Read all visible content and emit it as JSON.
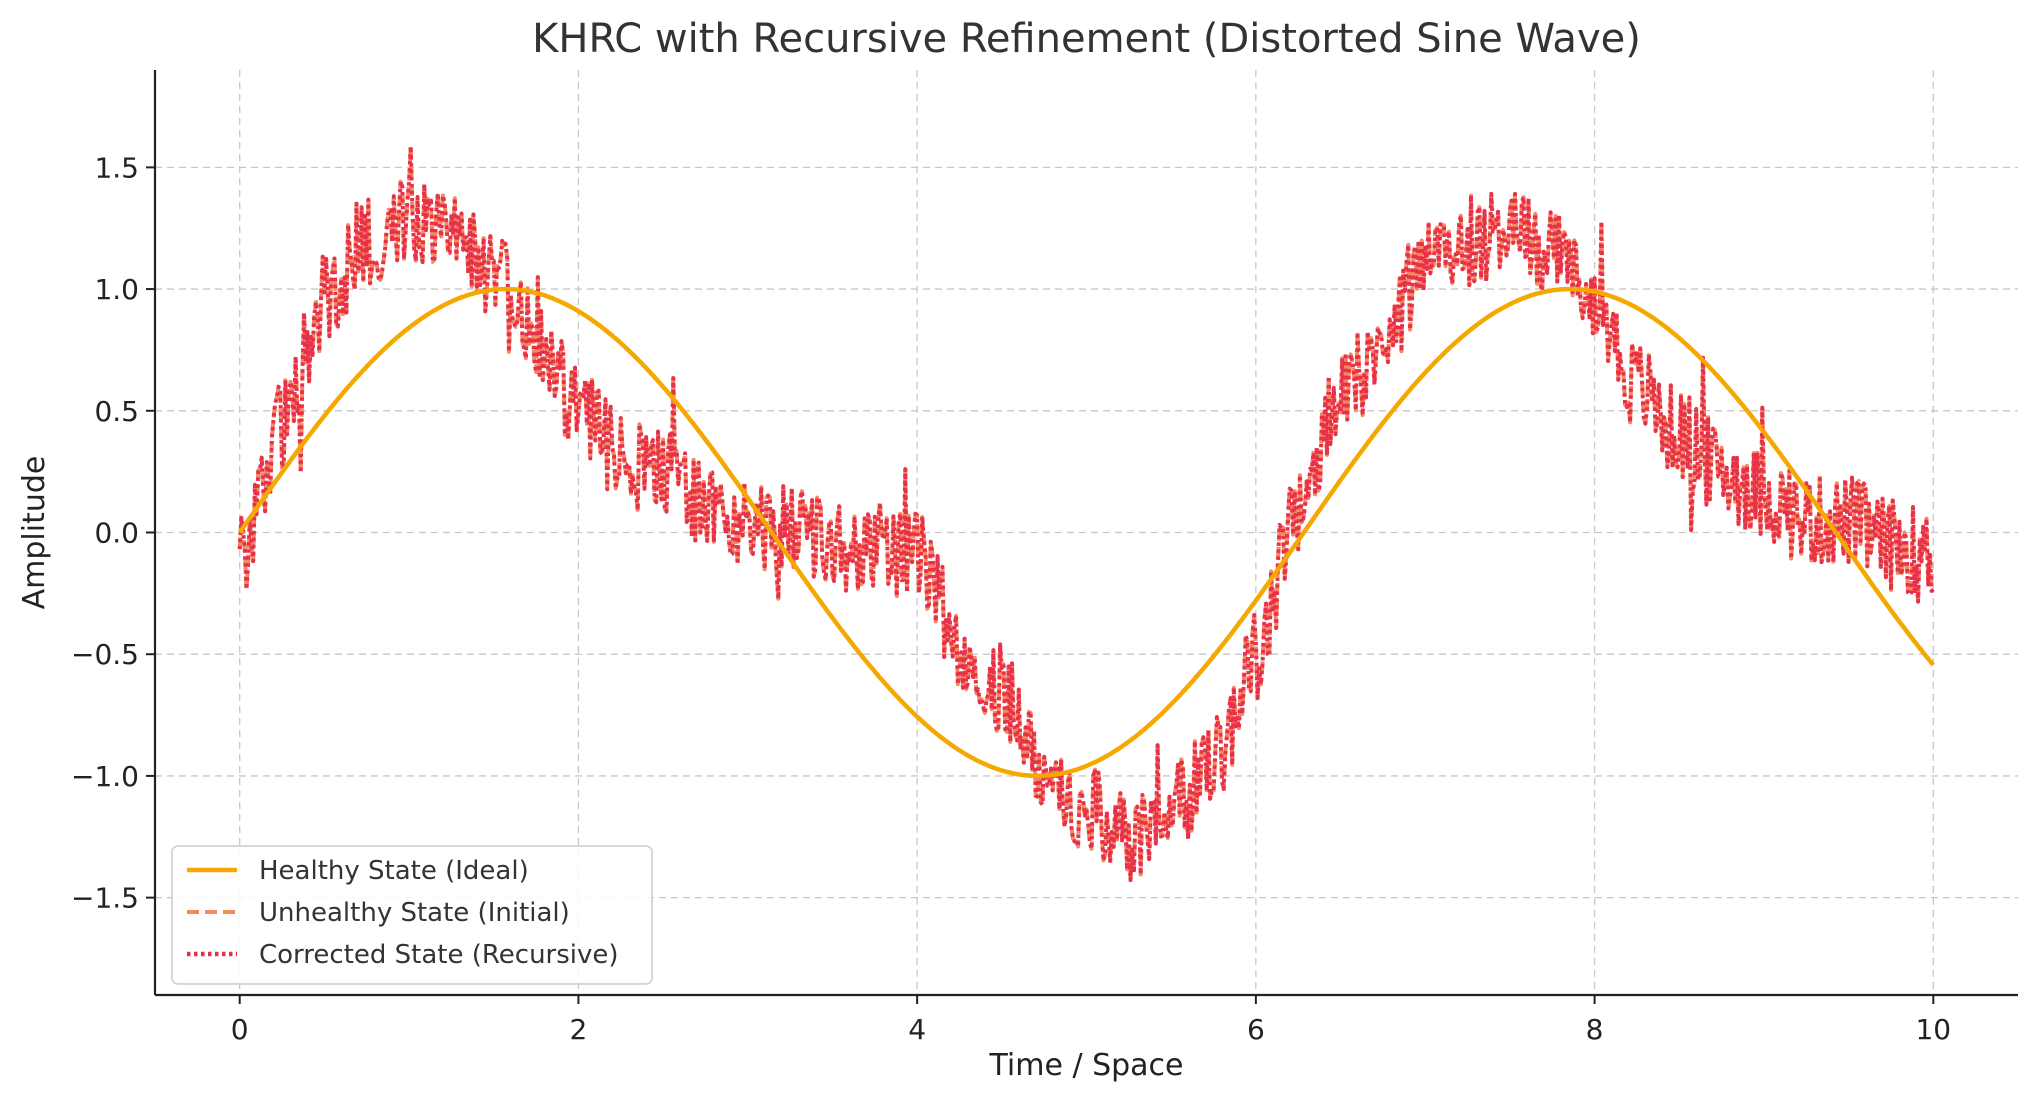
{
  "chart_data": {
    "type": "line",
    "title": "KHRC with Recursive Refinement (Distorted Sine Wave)",
    "xlabel": "Time / Space",
    "ylabel": "Amplitude",
    "xlim": [
      -0.5,
      10.5
    ],
    "ylim": [
      -1.9,
      1.9
    ],
    "xticks": [
      0,
      2,
      4,
      6,
      8,
      10
    ],
    "xtick_labels": [
      "0",
      "2",
      "4",
      "6",
      "8",
      "10"
    ],
    "yticks": [
      -1.5,
      -1.0,
      -0.5,
      0.0,
      0.5,
      1.0,
      1.5
    ],
    "ytick_labels": [
      "−1.5",
      "−1.0",
      "−0.5",
      "0.0",
      "0.5",
      "1.0",
      "1.5"
    ],
    "grid": true,
    "legend_position": "lower-left",
    "series": [
      {
        "name": "Healthy State (Ideal)",
        "style": "solid",
        "color": "#F5A800",
        "formula": "sin(x)",
        "x": [
          0,
          0.5,
          1,
          1.5,
          2,
          2.5,
          3,
          3.5,
          4,
          4.5,
          5,
          5.5,
          6,
          6.5,
          7,
          7.5,
          8,
          8.5,
          9,
          9.5,
          10
        ],
        "values": [
          0.0,
          0.48,
          0.84,
          1.0,
          0.91,
          0.6,
          0.14,
          -0.35,
          -0.76,
          -0.98,
          -0.96,
          -0.71,
          -0.28,
          0.22,
          0.66,
          0.94,
          0.99,
          0.8,
          0.41,
          -0.08,
          -0.54
        ]
      },
      {
        "name": "Unhealthy State (Initial)",
        "style": "dashed",
        "color": "#F4895F",
        "x": [
          0,
          0.25,
          0.5,
          0.75,
          1,
          1.25,
          1.5,
          1.75,
          2,
          2.25,
          2.5,
          2.75,
          3,
          3.25,
          3.5,
          3.75,
          4,
          4.25,
          4.5,
          4.75,
          5,
          5.25,
          5.5,
          5.75,
          6,
          6.25,
          6.5,
          6.75,
          7,
          7.25,
          7.5,
          7.75,
          8,
          8.25,
          8.5,
          8.75,
          9,
          9.25,
          9.5,
          9.75,
          10
        ],
        "values": [
          -0.1,
          0.45,
          0.95,
          1.2,
          1.3,
          1.3,
          1.05,
          0.8,
          0.5,
          0.3,
          0.25,
          0.1,
          0.05,
          0.0,
          -0.05,
          -0.05,
          -0.1,
          -0.45,
          -0.65,
          -0.95,
          -1.15,
          -1.25,
          -1.15,
          -0.95,
          -0.5,
          0.1,
          0.55,
          0.8,
          1.1,
          1.2,
          1.25,
          1.15,
          0.95,
          0.6,
          0.4,
          0.25,
          0.15,
          0.05,
          0.05,
          -0.05,
          -0.1
        ]
      },
      {
        "name": "Corrected State (Recursive)",
        "style": "dotted",
        "color": "#E8304A",
        "x": [
          0,
          0.25,
          0.5,
          0.75,
          1,
          1.25,
          1.5,
          1.75,
          2,
          2.25,
          2.5,
          2.75,
          3,
          3.25,
          3.5,
          3.75,
          4,
          4.25,
          4.5,
          4.75,
          5,
          5.25,
          5.5,
          5.75,
          6,
          6.25,
          6.5,
          6.75,
          7,
          7.25,
          7.5,
          7.75,
          8,
          8.25,
          8.5,
          8.75,
          9,
          9.25,
          9.5,
          9.75,
          10
        ],
        "values": [
          -0.1,
          0.45,
          0.95,
          1.2,
          1.3,
          1.3,
          1.05,
          0.8,
          0.5,
          0.3,
          0.25,
          0.1,
          0.05,
          0.0,
          -0.05,
          -0.05,
          -0.1,
          -0.45,
          -0.65,
          -0.95,
          -1.15,
          -1.25,
          -1.15,
          -0.95,
          -0.5,
          0.1,
          0.55,
          0.8,
          1.1,
          1.2,
          1.25,
          1.15,
          0.95,
          0.6,
          0.4,
          0.25,
          0.15,
          0.05,
          0.05,
          -0.05,
          -0.1
        ]
      }
    ]
  }
}
